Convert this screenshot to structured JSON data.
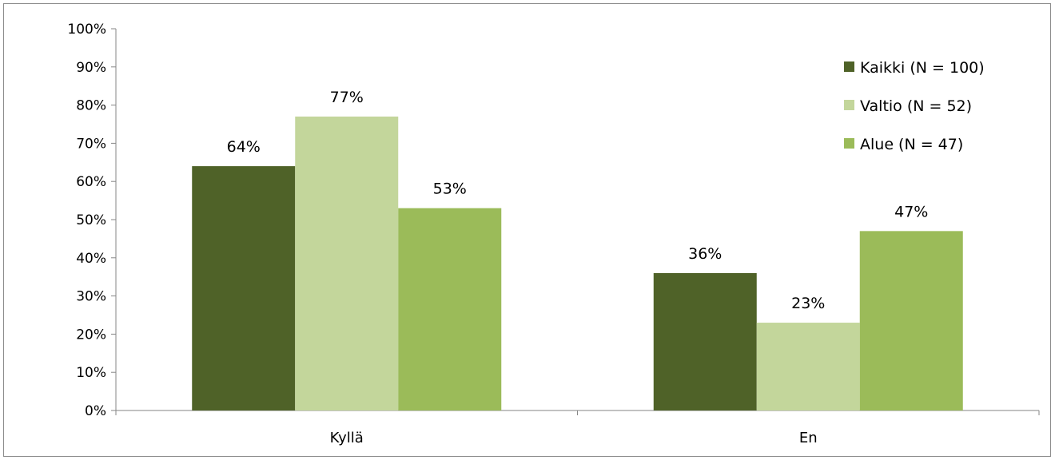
{
  "chart_data": {
    "type": "bar",
    "categories": [
      "Kyllä",
      "En"
    ],
    "series": [
      {
        "name": "Kaikki (N = 100)",
        "values": [
          64,
          36
        ],
        "color": "#4f6228"
      },
      {
        "name": "Valtio (N = 52)",
        "values": [
          77,
          23
        ],
        "color": "#c3d69b"
      },
      {
        "name": "Alue (N = 47)",
        "values": [
          53,
          47
        ],
        "color": "#9bbb59"
      }
    ],
    "data_labels": [
      [
        "64%",
        "36%"
      ],
      [
        "77%",
        "23%"
      ],
      [
        "53%",
        "47%"
      ]
    ],
    "y_ticks": [
      "0%",
      "10%",
      "20%",
      "30%",
      "40%",
      "50%",
      "60%",
      "70%",
      "80%",
      "90%",
      "100%"
    ],
    "ylim": [
      0,
      100
    ],
    "y_unit": "%",
    "title": "",
    "xlabel": "",
    "ylabel": "",
    "grid": false,
    "legend_position": "top-right"
  }
}
